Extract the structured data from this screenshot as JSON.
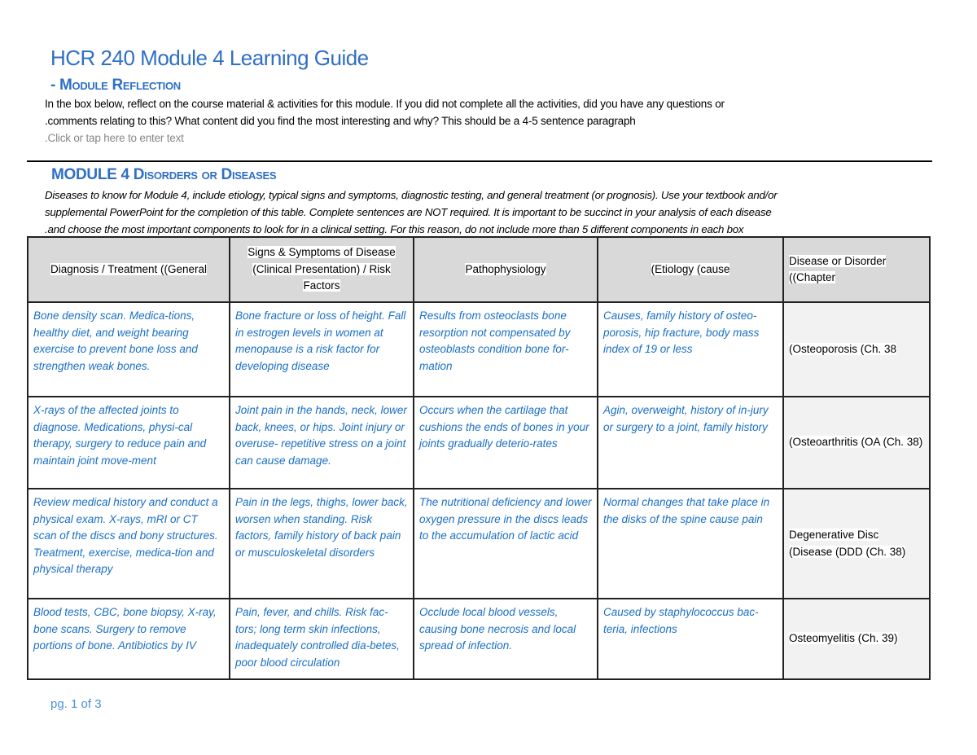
{
  "title": "HCR 240 Module 4 Learning Guide",
  "reflection": {
    "heading": "- Module Reflection",
    "line1": "In the box below, reflect on the course material & activities for this module.  If you did not complete all the activities, did you have any questions or",
    "line2": ".comments relating to this?  What content did you find the most interesting and why?  This should be a 4-5 sentence paragraph",
    "placeholder": ".Click or tap here to enter text"
  },
  "diseases": {
    "heading": "MODULE 4 Disorders or Diseases",
    "line1": "Diseases to know for Module 4, include etiology, typical signs and symptoms, diagnostic testing, and general treatment (or prognosis).  Use your textbook and/or",
    "line2": "supplemental PowerPoint for the completion of this table.  Complete sentences are NOT required.   It is important to be succinct in your analysis of each disease",
    "line3": ".and choose the most important components to look for in a clinical setting. For this reason, do not include more than 5 different components in each box"
  },
  "table": {
    "headers": [
      "Diagnosis / Treatment ((General",
      "Signs & Symptoms of Disease (Clinical Presentation) / Risk Factors",
      "Pathophysiology",
      "(Etiology (cause",
      "Disease or Disorder ((Chapter"
    ],
    "rows": [
      [
        "Bone density scan. Medica-tions, healthy diet, and weight bearing exercise to prevent bone loss and strengthen weak bones.",
        "Bone fracture or loss of height. Fall in estrogen levels in women at menopause is a risk factor for developing disease",
        "Results from osteoclasts bone resorption not compensated by osteoblasts condition bone for-mation",
        "Causes, family history of osteo-porosis, hip fracture, body mass index of 19 or less",
        "(Osteoporosis (Ch. 38"
      ],
      [
        "X-rays of the affected joints to diagnose. Medications, physi-cal therapy, surgery to reduce pain and maintain joint move-ment",
        "Joint pain in the hands, neck, lower back, knees, or hips. Joint injury or overuse- repetitive stress on a joint can cause damage.",
        "Occurs when the cartilage that cushions the ends of bones in your joints gradually deterio-rates",
        "Agin, overweight, history  of in-jury or surgery to a joint, family history",
        "(Osteoarthritis (OA (Ch. 38)"
      ],
      [
        "Review medical history and conduct a physical exam. X-rays, mRI or CT scan of the discs and bony structures. Treatment, exercise, medica-tion and physical therapy",
        "Pain in the legs, thighs, lower back, worsen when standing. Risk factors, family history of back pain or musculoskeletal disorders",
        "The nutritional deficiency and lower oxygen pressure in the discs leads to the accumulation of lactic acid",
        "Normal changes that take place in the disks of the spine cause pain",
        "Degenerative Disc (Disease (DDD (Ch. 38)"
      ],
      [
        "Blood tests, CBC, bone biopsy, X-ray, bone scans. Surgery to remove portions of bone. Antibiotics by IV",
        "Pain, fever, and chills. Risk fac-tors; long term skin infections, inadequately controlled dia-betes, poor blood circulation",
        "Occlude local blood vessels, causing bone necrosis and local spread of infection.",
        "Caused by staphylococcus bac-teria, infections",
        "Osteomyelitis (Ch. 39)"
      ]
    ]
  },
  "footer": "pg. 1 of 3"
}
